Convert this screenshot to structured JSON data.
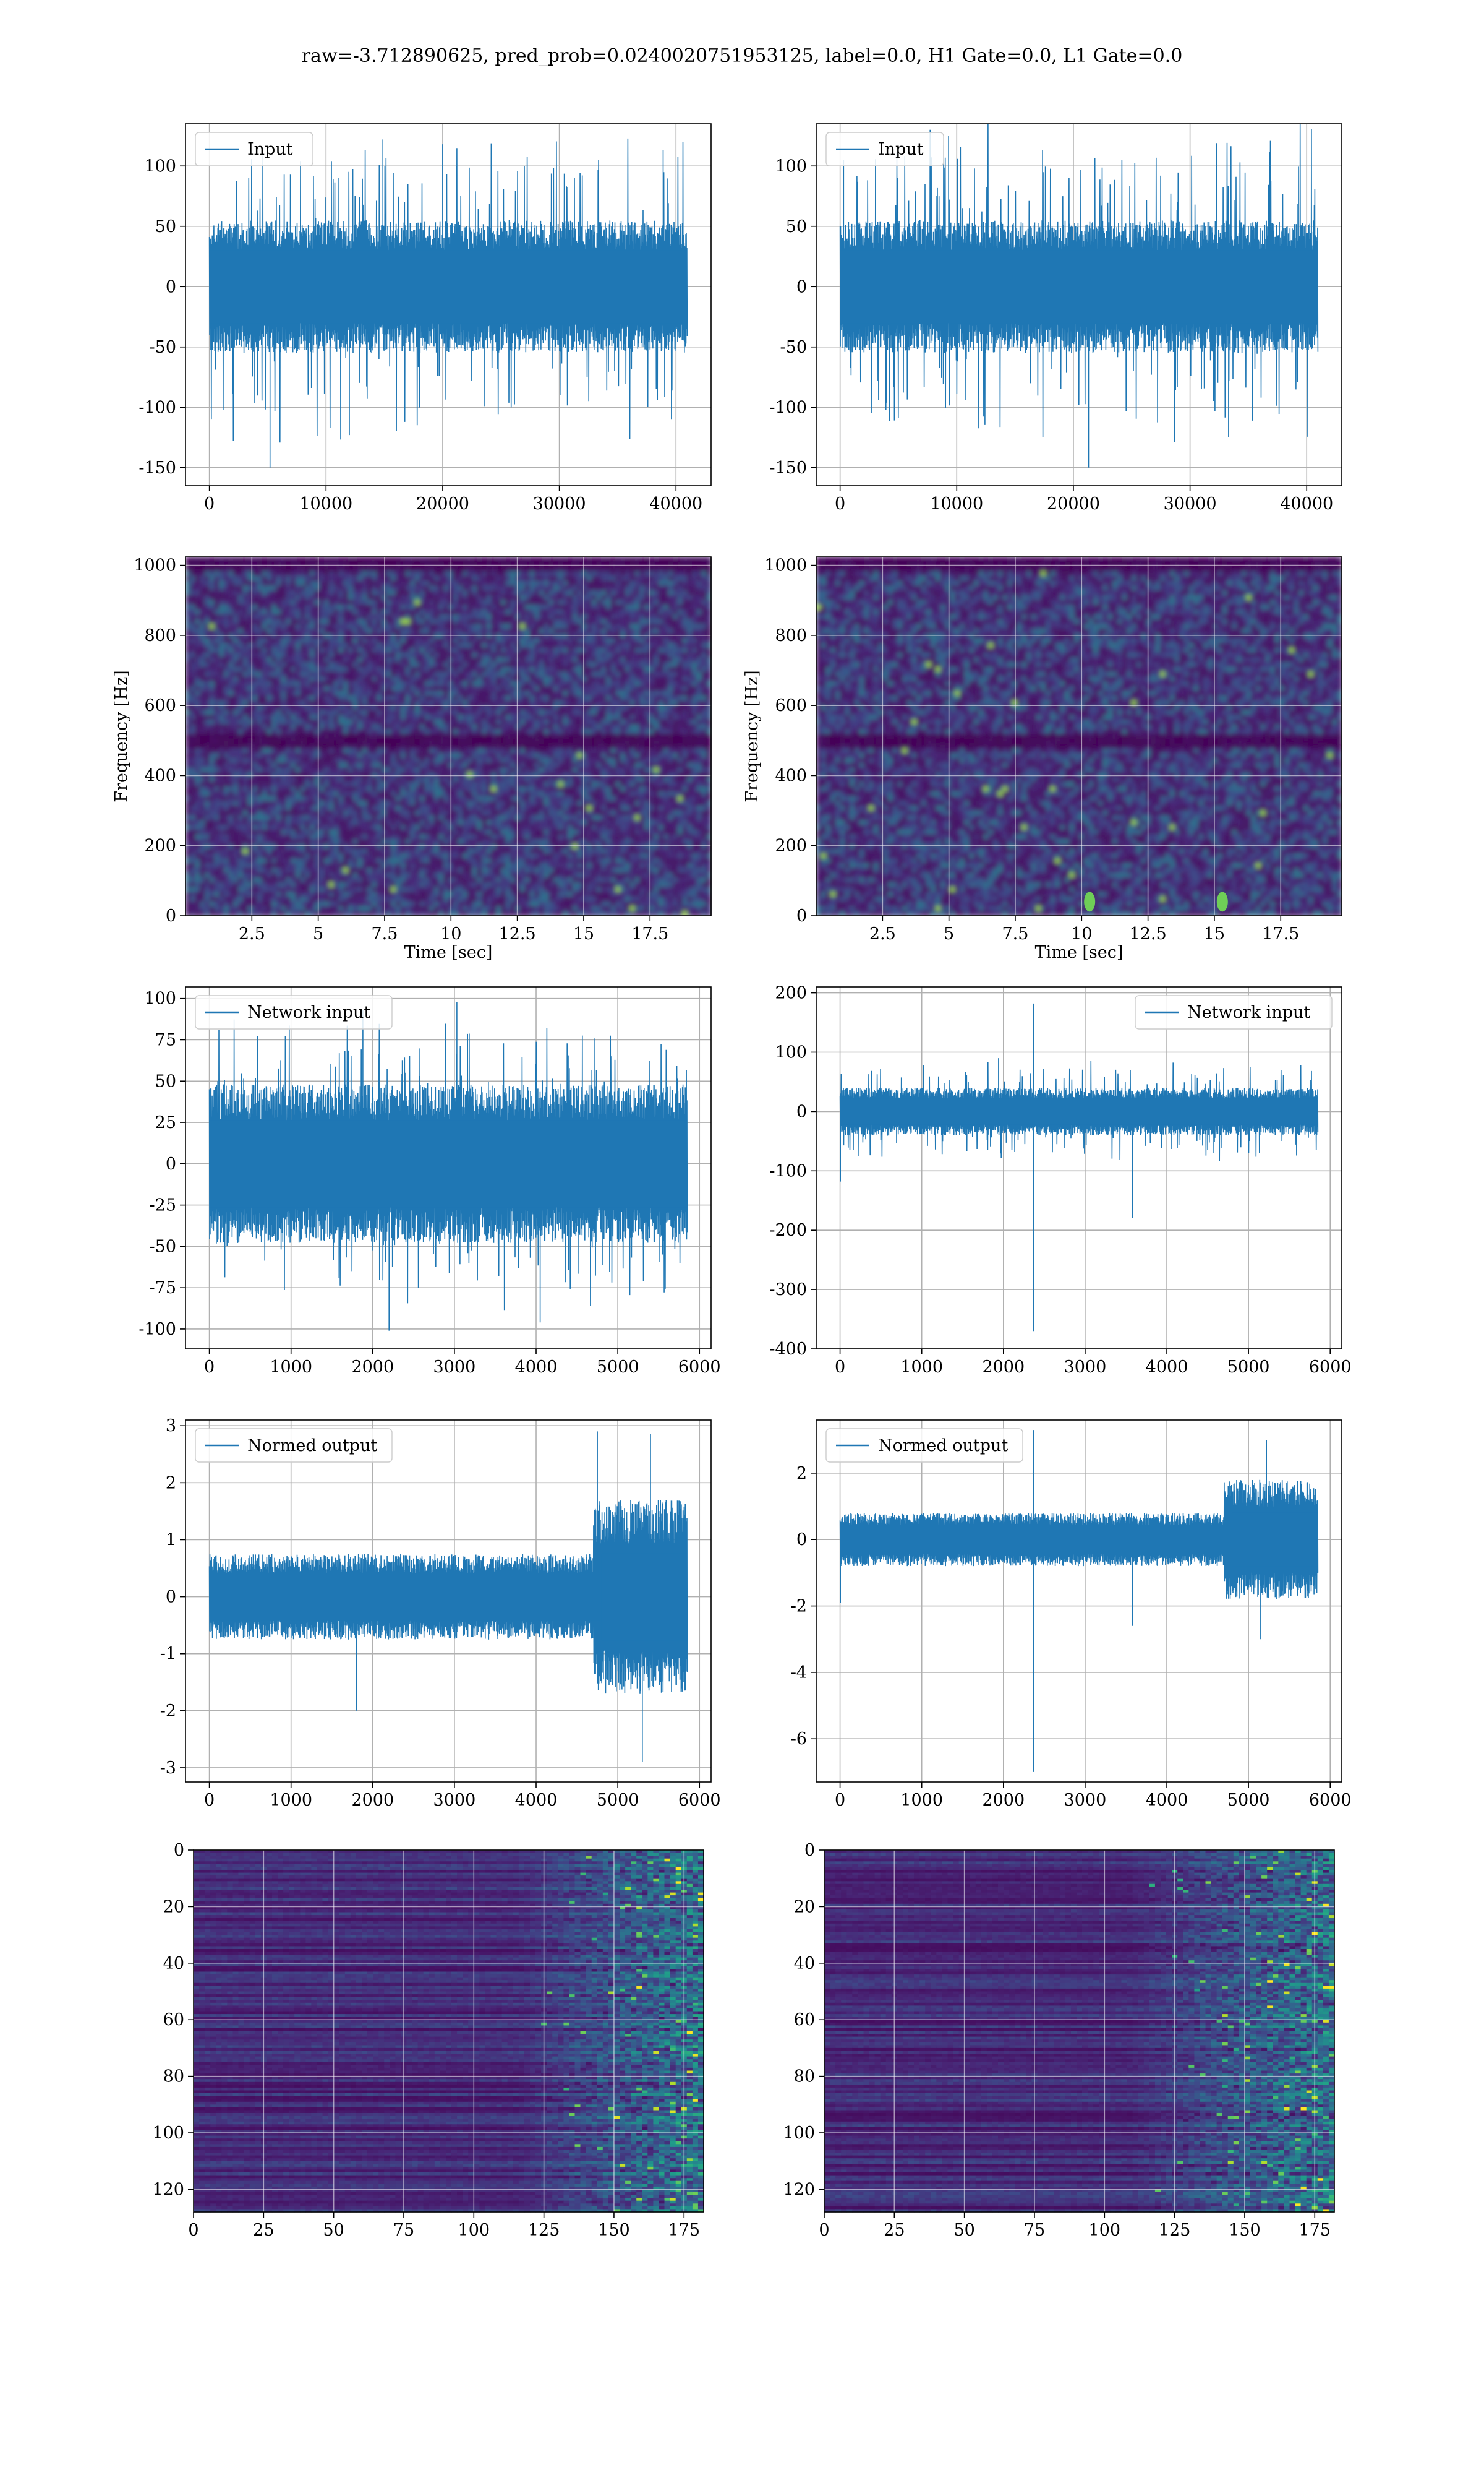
{
  "suptitle": "raw=-3.712890625, pred_prob=0.0240020751953125, label=0.0, H1 Gate=0.0, L1 Gate=0.0",
  "colors": {
    "line": "#1f77b4",
    "viridis_low": "#440154",
    "viridis_mid": "#21918c",
    "viridis_high": "#fde725",
    "grid": "#b0b0b0"
  },
  "chart_data": [
    {
      "id": "h1-input",
      "type": "line",
      "legend": [
        "Input"
      ],
      "legend_loc": "upper left",
      "x_range": [
        0,
        40960
      ],
      "xlim": [
        -2048,
        43008
      ],
      "ylim": [
        -165,
        135
      ],
      "xticks": [
        0,
        10000,
        20000,
        30000,
        40000
      ],
      "yticks": [
        -150,
        -100,
        -50,
        0,
        50,
        100
      ],
      "envelope": {
        "core": 55,
        "spike_max": 122,
        "spike_min": -150
      },
      "spikes": [
        [
          5200,
          -150
        ],
        [
          14800,
          122
        ],
        [
          20000,
          118
        ],
        [
          38900,
          113
        ],
        [
          12000,
          -123
        ]
      ],
      "grid": true
    },
    {
      "id": "l1-input",
      "type": "line",
      "legend": [
        "Input"
      ],
      "legend_loc": "upper left",
      "x_range": [
        0,
        40960
      ],
      "xlim": [
        -2048,
        43008
      ],
      "ylim": [
        -165,
        135
      ],
      "xticks": [
        0,
        10000,
        20000,
        30000,
        40000
      ],
      "yticks": [
        -150,
        -100,
        -50,
        0,
        50,
        100
      ],
      "envelope": {
        "core": 55,
        "spike_max": 125,
        "spike_min": -150
      },
      "spikes": [
        [
          21300,
          -150
        ],
        [
          9300,
          125
        ],
        [
          33300,
          -125
        ],
        [
          300,
          105
        ]
      ],
      "grid": true
    },
    {
      "id": "h1-spectrogram",
      "type": "heatmap",
      "colormap": "viridis",
      "xlabel": "Time [sec]",
      "ylabel": "Frequency [Hz]",
      "xlim": [
        0,
        19.8
      ],
      "ylim": [
        0,
        1024
      ],
      "xticks": [
        2.5,
        5.0,
        7.5,
        10.0,
        12.5,
        15.0,
        17.5
      ],
      "yticks": [
        0,
        200,
        400,
        600,
        800,
        1000
      ],
      "dark_bands_hz": [
        500,
        1000
      ],
      "grid": true
    },
    {
      "id": "l1-spectrogram",
      "type": "heatmap",
      "colormap": "viridis",
      "xlabel": "Time [sec]",
      "ylabel": "Frequency [Hz]",
      "xlim": [
        0,
        19.8
      ],
      "ylim": [
        0,
        1024
      ],
      "xticks": [
        2.5,
        5.0,
        7.5,
        10.0,
        12.5,
        15.0,
        17.5
      ],
      "yticks": [
        0,
        200,
        400,
        600,
        800,
        1000
      ],
      "dark_bands_hz": [
        500,
        1000
      ],
      "hot_spots": [
        [
          10.3,
          40
        ],
        [
          15.3,
          40
        ]
      ],
      "grid": true
    },
    {
      "id": "h1-network-input",
      "type": "line",
      "legend": [
        "Network input"
      ],
      "legend_loc": "upper left",
      "x_range": [
        0,
        5850
      ],
      "xlim": [
        -292,
        6142
      ],
      "ylim": [
        -112,
        107
      ],
      "xticks": [
        0,
        1000,
        2000,
        3000,
        4000,
        5000,
        6000
      ],
      "yticks": [
        -100,
        -75,
        -50,
        -25,
        0,
        25,
        50,
        75,
        100
      ],
      "envelope": {
        "core": 48,
        "spike_max": 98,
        "spike_min": -101
      },
      "spikes": [
        [
          2200,
          -101
        ],
        [
          3030,
          98
        ],
        [
          1880,
          93
        ],
        [
          4050,
          -96
        ]
      ],
      "grid": true
    },
    {
      "id": "l1-network-input",
      "type": "line",
      "legend": [
        "Network input"
      ],
      "legend_loc": "upper right",
      "x_range": [
        0,
        5850
      ],
      "xlim": [
        -292,
        6142
      ],
      "ylim": [
        -400,
        210
      ],
      "xticks": [
        0,
        1000,
        2000,
        3000,
        4000,
        5000,
        6000
      ],
      "yticks": [
        -400,
        -300,
        -200,
        -100,
        0,
        100,
        200
      ],
      "envelope": {
        "core": 40,
        "spike_max": 90,
        "spike_min": -95
      },
      "spikes": [
        [
          2370,
          182
        ],
        [
          2370,
          -370
        ],
        [
          3580,
          -180
        ],
        [
          5,
          -118
        ],
        [
          1940,
          90
        ]
      ],
      "grid": true
    },
    {
      "id": "h1-normed-output",
      "type": "line",
      "legend": [
        "Normed output"
      ],
      "legend_loc": "upper left",
      "x_range": [
        0,
        5850
      ],
      "xlim": [
        -292,
        6142
      ],
      "ylim": [
        -3.25,
        3.1
      ],
      "xticks": [
        0,
        1000,
        2000,
        3000,
        4000,
        5000,
        6000
      ],
      "yticks": [
        -3,
        -2,
        -1,
        0,
        1,
        2,
        3
      ],
      "envelope": {
        "core": 0.75,
        "loud_after": 4700,
        "loud_core": 1.7
      },
      "spikes": [
        [
          4750,
          2.9
        ],
        [
          5400,
          2.85
        ],
        [
          5300,
          -2.9
        ],
        [
          1800,
          -2.0
        ]
      ],
      "grid": true
    },
    {
      "id": "l1-normed-output",
      "type": "line",
      "legend": [
        "Normed output"
      ],
      "legend_loc": "upper left",
      "x_range": [
        0,
        5850
      ],
      "xlim": [
        -292,
        6142
      ],
      "ylim": [
        -7.3,
        3.6
      ],
      "xticks": [
        0,
        1000,
        2000,
        3000,
        4000,
        5000,
        6000
      ],
      "yticks": [
        -6,
        -4,
        -2,
        0,
        2
      ],
      "envelope": {
        "core": 0.8,
        "loud_after": 4700,
        "loud_core": 1.8
      },
      "spikes": [
        [
          2370,
          3.3
        ],
        [
          2370,
          -7.0
        ],
        [
          3580,
          -2.6
        ],
        [
          5,
          -1.9
        ],
        [
          5220,
          3.0
        ],
        [
          5150,
          -3.0
        ]
      ],
      "grid": true
    },
    {
      "id": "h1-feature-map",
      "type": "heatmap",
      "colormap": "viridis",
      "xlim": [
        0,
        182
      ],
      "ylim": [
        128,
        0
      ],
      "xticks": [
        0,
        25,
        50,
        75,
        100,
        125,
        150,
        175
      ],
      "yticks": [
        0,
        20,
        40,
        60,
        80,
        100,
        120
      ],
      "bright_after_col": 115,
      "grid": true
    },
    {
      "id": "l1-feature-map",
      "type": "heatmap",
      "colormap": "viridis",
      "xlim": [
        0,
        182
      ],
      "ylim": [
        128,
        0
      ],
      "xticks": [
        0,
        25,
        50,
        75,
        100,
        125,
        150,
        175
      ],
      "yticks": [
        0,
        20,
        40,
        60,
        80,
        100,
        120
      ],
      "bright_after_col": 108,
      "grid": true
    }
  ]
}
